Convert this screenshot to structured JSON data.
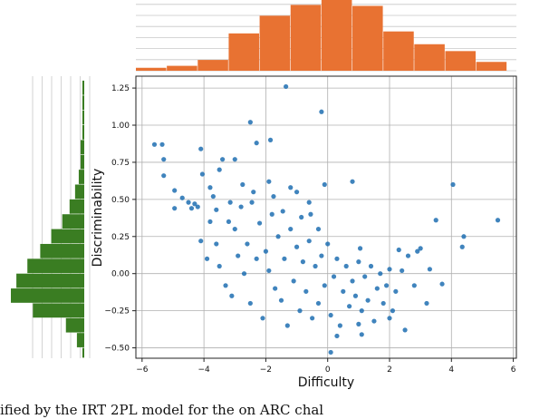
{
  "caption": "ified by the IRT 2PL model for the on ARC chal",
  "chart_data": [
    {
      "type": "scatter",
      "title": "",
      "xlabel": "Difficulty",
      "ylabel": "Discriminability",
      "xlim": [
        -6.2,
        6.1
      ],
      "ylim": [
        -0.57,
        1.33
      ],
      "xticks": [
        -6,
        -4,
        -2,
        0,
        2,
        4,
        6
      ],
      "xtick_labels": [
        "−6",
        "−4",
        "−2",
        "0",
        "2",
        "4",
        "6"
      ],
      "yticks": [
        -0.5,
        -0.25,
        0.0,
        0.25,
        0.5,
        0.75,
        1.0,
        1.25
      ],
      "ytick_labels": [
        "−0.50",
        "−0.25",
        "0.00",
        "0.25",
        "0.50",
        "0.75",
        "1.00",
        "1.25"
      ],
      "grid": true,
      "color": "#1f6fb2",
      "points": [
        [
          -5.6,
          0.87
        ],
        [
          -5.35,
          0.87
        ],
        [
          -5.3,
          0.77
        ],
        [
          -5.3,
          0.66
        ],
        [
          -4.95,
          0.56
        ],
        [
          -4.95,
          0.44
        ],
        [
          -4.7,
          0.51
        ],
        [
          -4.5,
          0.48
        ],
        [
          -4.4,
          0.44
        ],
        [
          -4.3,
          0.47
        ],
        [
          -4.1,
          0.84
        ],
        [
          -4.05,
          0.67
        ],
        [
          -3.8,
          0.58
        ],
        [
          -3.7,
          0.52
        ],
        [
          -3.5,
          0.7
        ],
        [
          -3.4,
          0.77
        ],
        [
          -3.0,
          0.77
        ],
        [
          -2.5,
          1.02
        ],
        [
          -2.3,
          0.88
        ],
        [
          -1.85,
          0.9
        ],
        [
          -1.35,
          1.26
        ],
        [
          -1.2,
          0.58
        ],
        [
          -1.0,
          0.55
        ],
        [
          -0.6,
          0.48
        ],
        [
          -0.2,
          1.09
        ],
        [
          -0.1,
          0.6
        ],
        [
          0.8,
          0.62
        ],
        [
          1.05,
          0.17
        ],
        [
          0.3,
          -0.42
        ],
        [
          0.1,
          -0.53
        ],
        [
          1.1,
          -0.41
        ],
        [
          1.0,
          -0.34
        ],
        [
          2.0,
          -0.3
        ],
        [
          2.3,
          0.16
        ],
        [
          2.6,
          0.12
        ],
        [
          2.4,
          0.02
        ],
        [
          2.8,
          -0.08
        ],
        [
          2.5,
          -0.38
        ],
        [
          3.0,
          0.17
        ],
        [
          3.3,
          0.03
        ],
        [
          3.5,
          0.36
        ],
        [
          3.7,
          -0.07
        ],
        [
          4.05,
          0.6
        ],
        [
          4.4,
          0.25
        ],
        [
          4.35,
          0.18
        ],
        [
          5.5,
          0.36
        ],
        [
          3.2,
          -0.2
        ],
        [
          2.9,
          0.15
        ],
        [
          -4.1,
          0.22
        ],
        [
          -4.2,
          0.45
        ],
        [
          -3.9,
          0.1
        ],
        [
          -3.8,
          0.35
        ],
        [
          -3.6,
          0.2
        ],
        [
          -3.5,
          0.05
        ],
        [
          -3.3,
          -0.08
        ],
        [
          -3.2,
          0.35
        ],
        [
          -3.1,
          -0.15
        ],
        [
          -3.0,
          0.3
        ],
        [
          -2.9,
          0.12
        ],
        [
          -2.8,
          0.45
        ],
        [
          -2.7,
          0.0
        ],
        [
          -2.6,
          0.2
        ],
        [
          -2.5,
          -0.2
        ],
        [
          -2.4,
          0.55
        ],
        [
          -2.3,
          0.1
        ],
        [
          -2.2,
          0.34
        ],
        [
          -2.1,
          -0.3
        ],
        [
          -2.0,
          0.15
        ],
        [
          -1.9,
          0.02
        ],
        [
          -1.8,
          0.4
        ],
        [
          -1.7,
          -0.1
        ],
        [
          -1.6,
          0.25
        ],
        [
          -1.5,
          -0.18
        ],
        [
          -1.4,
          0.1
        ],
        [
          -1.3,
          -0.35
        ],
        [
          -1.2,
          0.3
        ],
        [
          -1.1,
          -0.05
        ],
        [
          -1.0,
          0.18
        ],
        [
          -0.9,
          -0.25
        ],
        [
          -0.8,
          0.08
        ],
        [
          -0.7,
          -0.12
        ],
        [
          -0.6,
          0.22
        ],
        [
          -0.5,
          -0.3
        ],
        [
          -0.4,
          0.05
        ],
        [
          -0.3,
          -0.2
        ],
        [
          -0.2,
          0.12
        ],
        [
          -0.1,
          -0.08
        ],
        [
          0.0,
          0.2
        ],
        [
          0.1,
          -0.28
        ],
        [
          0.2,
          -0.02
        ],
        [
          0.3,
          0.1
        ],
        [
          0.4,
          -0.35
        ],
        [
          0.5,
          -0.12
        ],
        [
          0.6,
          0.05
        ],
        [
          0.7,
          -0.22
        ],
        [
          0.8,
          -0.05
        ],
        [
          0.9,
          -0.15
        ],
        [
          1.0,
          0.08
        ],
        [
          1.1,
          -0.25
        ],
        [
          1.2,
          -0.02
        ],
        [
          1.3,
          -0.18
        ],
        [
          1.4,
          0.05
        ],
        [
          1.5,
          -0.32
        ],
        [
          1.6,
          -0.1
        ],
        [
          1.7,
          0.0
        ],
        [
          1.8,
          -0.2
        ],
        [
          1.9,
          -0.08
        ],
        [
          2.0,
          0.03
        ],
        [
          2.1,
          -0.25
        ],
        [
          2.2,
          -0.12
        ],
        [
          -2.75,
          0.6
        ],
        [
          -2.45,
          0.48
        ],
        [
          -1.9,
          0.62
        ],
        [
          -1.45,
          0.42
        ],
        [
          -0.85,
          0.38
        ],
        [
          -0.3,
          0.3
        ],
        [
          -3.15,
          0.48
        ],
        [
          -3.6,
          0.43
        ],
        [
          -1.75,
          0.52
        ],
        [
          -0.55,
          0.4
        ]
      ]
    },
    {
      "type": "bar",
      "title": "",
      "orientation": "vertical",
      "xlabel": "",
      "ylabel": "",
      "xlim": [
        -6.2,
        6.1
      ],
      "bin_edges": [
        -6.2,
        -5.2,
        -4.2,
        -3.2,
        -2.2,
        -1.2,
        -0.2,
        0.8,
        1.8,
        2.8,
        3.8,
        4.8,
        5.8
      ],
      "values": [
        3,
        5,
        11,
        38,
        56,
        67,
        72,
        66,
        40,
        27,
        20,
        9
      ],
      "color": "#e87232",
      "grid": true
    },
    {
      "type": "bar",
      "title": "",
      "orientation": "horizontal",
      "xlabel": "",
      "ylabel": "",
      "ylim": [
        -0.57,
        1.33
      ],
      "bin_edges": [
        -0.6,
        -0.5,
        -0.4,
        -0.3,
        -0.2,
        -0.1,
        0.0,
        0.1,
        0.2,
        0.3,
        0.4,
        0.5,
        0.6,
        0.7,
        0.8,
        0.9,
        1.0,
        1.1,
        1.2,
        1.3
      ],
      "values": [
        1,
        4,
        10,
        28,
        40,
        37,
        31,
        24,
        18,
        12,
        8,
        5,
        3,
        2,
        2,
        1,
        1,
        1,
        1
      ],
      "color": "#3a7d22",
      "grid": true
    }
  ]
}
